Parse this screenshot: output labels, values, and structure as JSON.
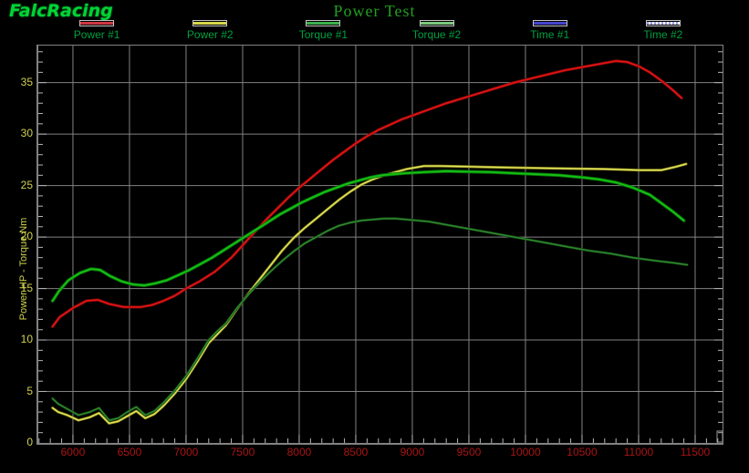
{
  "window": {
    "logo": "FalcRacing",
    "title": "Power Test"
  },
  "colors": {
    "background": "#000000",
    "grid": "#828282",
    "tick": "#b5b5b5",
    "x_tick_label": "#aa1414",
    "y_tick_label": "#d2d24f",
    "legend_label": "#00a040",
    "title": "#1fa01f",
    "logo": "#00d435"
  },
  "legend": [
    {
      "label": "Power #1",
      "color": "#cf3642",
      "dotted": false
    },
    {
      "label": "Power #2",
      "color": "#d8d84a",
      "dotted": false
    },
    {
      "label": "Torque #1",
      "color": "#3cb14c",
      "dotted": false
    },
    {
      "label": "Torque #2",
      "color": "#7cc87c",
      "dotted": false
    },
    {
      "label": "Time #1",
      "color": "#4646cf",
      "dotted": false
    },
    {
      "label": "Time #2",
      "color": "#9a9ae6",
      "dotted": true
    }
  ],
  "chart_data": {
    "type": "line",
    "title": "Power Test",
    "ylabel": "Power HP - Torque Nm",
    "xlabel": "",
    "x_range": [
      5694,
      11742
    ],
    "y_range": [
      0,
      38.6
    ],
    "x_major_ticks": [
      6000,
      6500,
      7000,
      7500,
      8000,
      8500,
      9000,
      9500,
      10000,
      10500,
      11000,
      11500
    ],
    "x_minor_step": 100,
    "y_major_ticks": [
      0,
      5,
      10,
      15,
      20,
      25,
      30,
      35
    ],
    "y_minor_step": 1,
    "grid": true,
    "legend_position": "top",
    "series": [
      {
        "name": "Power #1",
        "core": "#e41414",
        "halo": "#7e0808",
        "width": 1.6,
        "halo_width": 3.2,
        "points": [
          [
            5820,
            11.3
          ],
          [
            5880,
            12.2
          ],
          [
            6000,
            13.1
          ],
          [
            6120,
            13.8
          ],
          [
            6220,
            13.9
          ],
          [
            6320,
            13.5
          ],
          [
            6450,
            13.2
          ],
          [
            6600,
            13.2
          ],
          [
            6700,
            13.4
          ],
          [
            6800,
            13.8
          ],
          [
            6900,
            14.3
          ],
          [
            7000,
            15.0
          ],
          [
            7120,
            15.7
          ],
          [
            7250,
            16.6
          ],
          [
            7400,
            18.0
          ],
          [
            7500,
            19.2
          ],
          [
            7600,
            20.4
          ],
          [
            7700,
            21.6
          ],
          [
            7800,
            22.7
          ],
          [
            7900,
            23.8
          ],
          [
            8000,
            24.8
          ],
          [
            8100,
            25.7
          ],
          [
            8200,
            26.6
          ],
          [
            8300,
            27.5
          ],
          [
            8400,
            28.3
          ],
          [
            8500,
            29.1
          ],
          [
            8600,
            29.8
          ],
          [
            8700,
            30.4
          ],
          [
            8800,
            30.9
          ],
          [
            8900,
            31.4
          ],
          [
            9000,
            31.8
          ],
          [
            9150,
            32.4
          ],
          [
            9300,
            33.0
          ],
          [
            9450,
            33.5
          ],
          [
            9600,
            34.0
          ],
          [
            9750,
            34.5
          ],
          [
            9900,
            35.0
          ],
          [
            10050,
            35.4
          ],
          [
            10200,
            35.8
          ],
          [
            10350,
            36.2
          ],
          [
            10500,
            36.5
          ],
          [
            10650,
            36.8
          ],
          [
            10800,
            37.1
          ],
          [
            10900,
            37.0
          ],
          [
            11000,
            36.6
          ],
          [
            11100,
            36.0
          ],
          [
            11200,
            35.2
          ],
          [
            11300,
            34.3
          ],
          [
            11380,
            33.5
          ]
        ]
      },
      {
        "name": "Power #2",
        "core": "#e2e25c",
        "halo": "#8f8f1e",
        "width": 1.4,
        "halo_width": 2.8,
        "points": [
          [
            5820,
            3.4
          ],
          [
            5870,
            3.0
          ],
          [
            5950,
            2.7
          ],
          [
            6050,
            2.2
          ],
          [
            6150,
            2.5
          ],
          [
            6230,
            2.9
          ],
          [
            6320,
            1.9
          ],
          [
            6400,
            2.1
          ],
          [
            6480,
            2.6
          ],
          [
            6560,
            3.1
          ],
          [
            6640,
            2.4
          ],
          [
            6720,
            2.8
          ],
          [
            6800,
            3.6
          ],
          [
            6900,
            4.8
          ],
          [
            7000,
            6.2
          ],
          [
            7100,
            7.9
          ],
          [
            7200,
            9.7
          ],
          [
            7280,
            10.6
          ],
          [
            7350,
            11.4
          ],
          [
            7450,
            13.0
          ],
          [
            7550,
            14.5
          ],
          [
            7650,
            15.9
          ],
          [
            7750,
            17.3
          ],
          [
            7850,
            18.7
          ],
          [
            7950,
            19.9
          ],
          [
            8050,
            20.9
          ],
          [
            8150,
            21.8
          ],
          [
            8250,
            22.7
          ],
          [
            8350,
            23.6
          ],
          [
            8450,
            24.4
          ],
          [
            8550,
            25.1
          ],
          [
            8650,
            25.6
          ],
          [
            8750,
            26.0
          ],
          [
            8850,
            26.3
          ],
          [
            8950,
            26.6
          ],
          [
            9100,
            26.9
          ],
          [
            9250,
            26.9
          ],
          [
            9450,
            26.85
          ],
          [
            9650,
            26.8
          ],
          [
            9850,
            26.75
          ],
          [
            10100,
            26.7
          ],
          [
            10400,
            26.65
          ],
          [
            10700,
            26.6
          ],
          [
            11000,
            26.5
          ],
          [
            11200,
            26.5
          ],
          [
            11320,
            26.8
          ],
          [
            11420,
            27.1
          ]
        ]
      },
      {
        "name": "Torque #1",
        "core": "#16c016",
        "halo": "#067706",
        "width": 1.8,
        "halo_width": 3.6,
        "points": [
          [
            5820,
            13.8
          ],
          [
            5880,
            14.8
          ],
          [
            5960,
            15.8
          ],
          [
            6060,
            16.5
          ],
          [
            6160,
            16.9
          ],
          [
            6240,
            16.8
          ],
          [
            6330,
            16.2
          ],
          [
            6430,
            15.7
          ],
          [
            6530,
            15.4
          ],
          [
            6630,
            15.3
          ],
          [
            6730,
            15.5
          ],
          [
            6830,
            15.8
          ],
          [
            6930,
            16.3
          ],
          [
            7030,
            16.8
          ],
          [
            7130,
            17.4
          ],
          [
            7230,
            18.0
          ],
          [
            7330,
            18.7
          ],
          [
            7430,
            19.4
          ],
          [
            7530,
            20.1
          ],
          [
            7630,
            20.8
          ],
          [
            7730,
            21.5
          ],
          [
            7830,
            22.2
          ],
          [
            7930,
            22.8
          ],
          [
            8030,
            23.4
          ],
          [
            8130,
            23.9
          ],
          [
            8230,
            24.4
          ],
          [
            8330,
            24.8
          ],
          [
            8430,
            25.2
          ],
          [
            8530,
            25.5
          ],
          [
            8630,
            25.8
          ],
          [
            8730,
            26.0
          ],
          [
            8830,
            26.1
          ],
          [
            8930,
            26.2
          ],
          [
            9100,
            26.3
          ],
          [
            9300,
            26.4
          ],
          [
            9500,
            26.35
          ],
          [
            9700,
            26.3
          ],
          [
            9900,
            26.2
          ],
          [
            10100,
            26.1
          ],
          [
            10300,
            26.0
          ],
          [
            10500,
            25.8
          ],
          [
            10650,
            25.6
          ],
          [
            10800,
            25.3
          ],
          [
            10950,
            24.8
          ],
          [
            11100,
            24.1
          ],
          [
            11200,
            23.3
          ],
          [
            11300,
            22.5
          ],
          [
            11400,
            21.6
          ]
        ]
      },
      {
        "name": "Torque #2",
        "core": "#2e8b2e",
        "halo": "#134413",
        "width": 1.4,
        "halo_width": 2.8,
        "points": [
          [
            5820,
            4.3
          ],
          [
            5870,
            3.8
          ],
          [
            5950,
            3.3
          ],
          [
            6050,
            2.7
          ],
          [
            6150,
            3.0
          ],
          [
            6230,
            3.4
          ],
          [
            6320,
            2.2
          ],
          [
            6400,
            2.4
          ],
          [
            6480,
            3.0
          ],
          [
            6560,
            3.5
          ],
          [
            6640,
            2.7
          ],
          [
            6720,
            3.1
          ],
          [
            6800,
            3.9
          ],
          [
            6900,
            5.1
          ],
          [
            7000,
            6.5
          ],
          [
            7100,
            8.2
          ],
          [
            7200,
            10.0
          ],
          [
            7280,
            10.9
          ],
          [
            7350,
            11.6
          ],
          [
            7450,
            13.1
          ],
          [
            7550,
            14.4
          ],
          [
            7650,
            15.6
          ],
          [
            7750,
            16.7
          ],
          [
            7850,
            17.7
          ],
          [
            7950,
            18.6
          ],
          [
            8050,
            19.4
          ],
          [
            8150,
            20.0
          ],
          [
            8250,
            20.6
          ],
          [
            8350,
            21.1
          ],
          [
            8450,
            21.4
          ],
          [
            8550,
            21.6
          ],
          [
            8650,
            21.7
          ],
          [
            8750,
            21.8
          ],
          [
            8850,
            21.8
          ],
          [
            8950,
            21.7
          ],
          [
            9150,
            21.5
          ],
          [
            9350,
            21.1
          ],
          [
            9550,
            20.7
          ],
          [
            9750,
            20.3
          ],
          [
            9950,
            19.9
          ],
          [
            10150,
            19.5
          ],
          [
            10350,
            19.1
          ],
          [
            10550,
            18.7
          ],
          [
            10750,
            18.4
          ],
          [
            10950,
            18.0
          ],
          [
            11150,
            17.7
          ],
          [
            11300,
            17.5
          ],
          [
            11430,
            17.3
          ]
        ]
      }
    ]
  }
}
